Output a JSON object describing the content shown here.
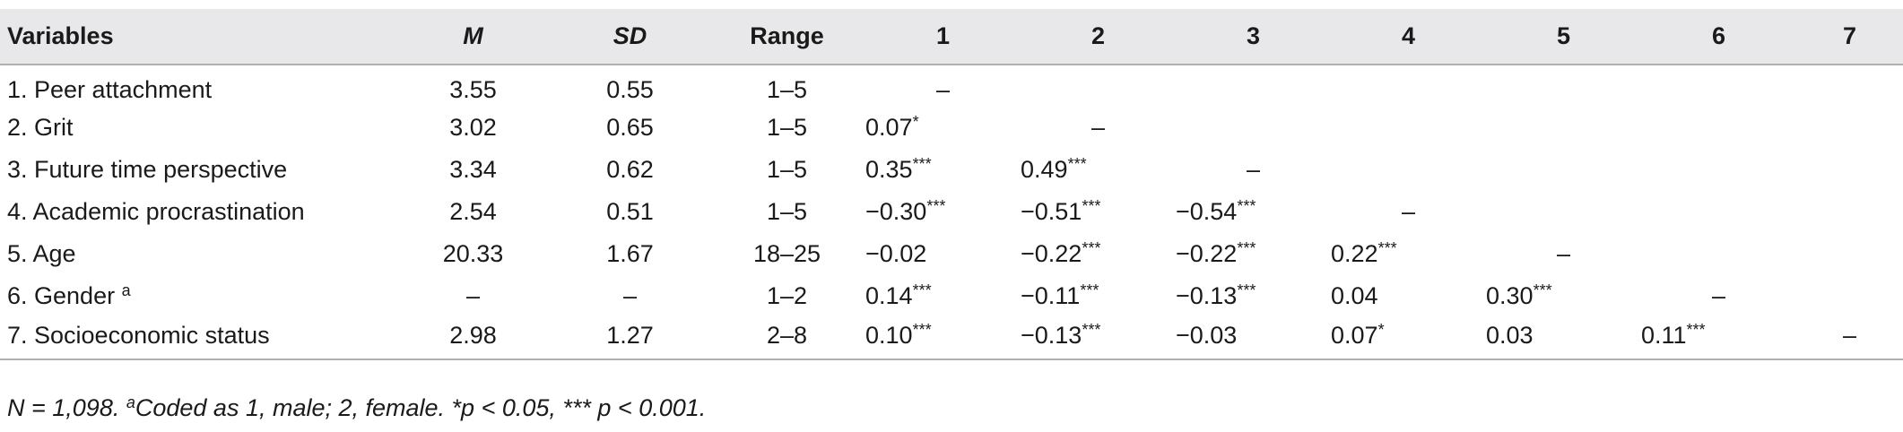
{
  "table": {
    "headers": [
      "Variables",
      "M",
      "SD",
      "Range",
      "1",
      "2",
      "3",
      "4",
      "5",
      "6",
      "7"
    ],
    "rows": [
      {
        "variable": "1. Peer attachment",
        "sup": "",
        "m": "3.55",
        "sd": "0.55",
        "range": "1–5",
        "c": [
          {
            "v": "–",
            "s": ""
          },
          {
            "v": "",
            "s": ""
          },
          {
            "v": "",
            "s": ""
          },
          {
            "v": "",
            "s": ""
          },
          {
            "v": "",
            "s": ""
          },
          {
            "v": "",
            "s": ""
          },
          {
            "v": "",
            "s": ""
          }
        ]
      },
      {
        "variable": "2. Grit",
        "sup": "",
        "m": "3.02",
        "sd": "0.65",
        "range": "1–5",
        "c": [
          {
            "v": "0.07",
            "s": "*"
          },
          {
            "v": "–",
            "s": ""
          },
          {
            "v": "",
            "s": ""
          },
          {
            "v": "",
            "s": ""
          },
          {
            "v": "",
            "s": ""
          },
          {
            "v": "",
            "s": ""
          },
          {
            "v": "",
            "s": ""
          }
        ]
      },
      {
        "variable": "3. Future time perspective",
        "sup": "",
        "m": "3.34",
        "sd": "0.62",
        "range": "1–5",
        "c": [
          {
            "v": "0.35",
            "s": "***"
          },
          {
            "v": "0.49",
            "s": "***"
          },
          {
            "v": "–",
            "s": ""
          },
          {
            "v": "",
            "s": ""
          },
          {
            "v": "",
            "s": ""
          },
          {
            "v": "",
            "s": ""
          },
          {
            "v": "",
            "s": ""
          }
        ]
      },
      {
        "variable": "4. Academic procrastination",
        "sup": "",
        "m": "2.54",
        "sd": "0.51",
        "range": "1–5",
        "c": [
          {
            "v": "−0.30",
            "s": "***"
          },
          {
            "v": "−0.51",
            "s": "***"
          },
          {
            "v": "−0.54",
            "s": "***"
          },
          {
            "v": "–",
            "s": ""
          },
          {
            "v": "",
            "s": ""
          },
          {
            "v": "",
            "s": ""
          },
          {
            "v": "",
            "s": ""
          }
        ]
      },
      {
        "variable": "5. Age",
        "sup": "",
        "m": "20.33",
        "sd": "1.67",
        "range": "18–25",
        "c": [
          {
            "v": "−0.02",
            "s": ""
          },
          {
            "v": "−0.22",
            "s": "***"
          },
          {
            "v": "−0.22",
            "s": "***"
          },
          {
            "v": "0.22",
            "s": "***"
          },
          {
            "v": "–",
            "s": ""
          },
          {
            "v": "",
            "s": ""
          },
          {
            "v": "",
            "s": ""
          }
        ]
      },
      {
        "variable": "6. Gender ",
        "sup": "a",
        "m": "–",
        "sd": "–",
        "range": "1–2",
        "c": [
          {
            "v": "0.14",
            "s": "***"
          },
          {
            "v": "−0.11",
            "s": "***"
          },
          {
            "v": "−0.13",
            "s": "***"
          },
          {
            "v": "0.04",
            "s": ""
          },
          {
            "v": "0.30",
            "s": "***"
          },
          {
            "v": "–",
            "s": ""
          },
          {
            "v": "",
            "s": ""
          }
        ]
      },
      {
        "variable": "7. Socioeconomic status",
        "sup": "",
        "m": "2.98",
        "sd": "1.27",
        "range": "2–8",
        "c": [
          {
            "v": "0.10",
            "s": "***"
          },
          {
            "v": "−0.13",
            "s": "***"
          },
          {
            "v": "−0.03",
            "s": ""
          },
          {
            "v": "0.07",
            "s": "*"
          },
          {
            "v": "0.03",
            "s": ""
          },
          {
            "v": "0.11",
            "s": "***"
          },
          {
            "v": "–",
            "s": ""
          }
        ]
      }
    ]
  },
  "note": {
    "part1": "N = 1,098. ",
    "sup": "a",
    "part2": "Coded as 1, male; 2,  female. *p < 0.05, *** p < 0.001."
  }
}
